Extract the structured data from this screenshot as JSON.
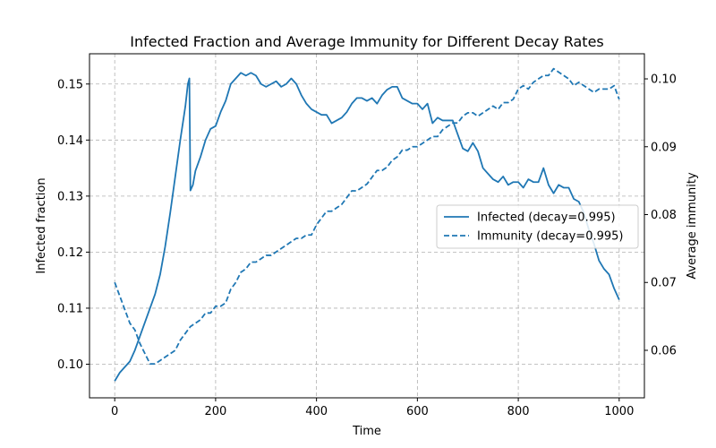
{
  "chart_data": {
    "type": "line",
    "title": "Infected Fraction and Average Immunity for Different Decay Rates",
    "xlabel": "Time",
    "ylabel_left": "Infected fraction",
    "ylabel_right": "Average immunity",
    "xlim": [
      -50,
      1050
    ],
    "ylim_left": [
      0.094,
      0.1554
    ],
    "ylim_right": [
      0.053,
      0.1037
    ],
    "x_ticks": [
      0,
      200,
      400,
      600,
      800,
      1000
    ],
    "x_tick_labels": [
      "0",
      "200",
      "400",
      "600",
      "800",
      "1000"
    ],
    "y_ticks_left": [
      0.1,
      0.11,
      0.12,
      0.13,
      0.14,
      0.15
    ],
    "y_tick_labels_left": [
      "0.10",
      "0.11",
      "0.12",
      "0.13",
      "0.14",
      "0.15"
    ],
    "y_ticks_right": [
      0.06,
      0.07,
      0.08,
      0.09,
      0.1
    ],
    "y_tick_labels_right": [
      "0.06",
      "0.07",
      "0.08",
      "0.09",
      "0.10"
    ],
    "grid": true,
    "grid_style": "dashed",
    "legend_position": "center-right",
    "series": [
      {
        "name": "Infected (decay=0.995)",
        "axis": "left",
        "style": "solid",
        "color": "#1f77b4",
        "x": [
          0,
          10,
          20,
          30,
          40,
          50,
          60,
          70,
          80,
          90,
          100,
          110,
          120,
          130,
          140,
          145,
          148,
          150,
          155,
          160,
          170,
          180,
          190,
          200,
          210,
          220,
          230,
          240,
          250,
          260,
          270,
          280,
          290,
          300,
          310,
          320,
          330,
          340,
          350,
          360,
          370,
          380,
          390,
          400,
          410,
          420,
          430,
          440,
          450,
          460,
          470,
          480,
          490,
          500,
          510,
          520,
          530,
          540,
          550,
          560,
          570,
          580,
          590,
          600,
          610,
          620,
          630,
          640,
          650,
          660,
          670,
          680,
          690,
          700,
          710,
          720,
          730,
          740,
          750,
          760,
          770,
          780,
          790,
          800,
          810,
          820,
          830,
          840,
          850,
          860,
          870,
          880,
          890,
          900,
          910,
          920,
          930,
          940,
          950,
          960,
          970,
          980,
          990,
          1000
        ],
        "values": [
          0.097,
          0.0985,
          0.0995,
          0.1005,
          0.1025,
          0.105,
          0.1075,
          0.11,
          0.1125,
          0.116,
          0.121,
          0.127,
          0.1335,
          0.14,
          0.146,
          0.15,
          0.151,
          0.131,
          0.132,
          0.1345,
          0.137,
          0.14,
          0.142,
          0.1425,
          0.145,
          0.147,
          0.15,
          0.151,
          0.152,
          0.1515,
          0.152,
          0.1515,
          0.15,
          0.1495,
          0.15,
          0.1505,
          0.1495,
          0.15,
          0.151,
          0.15,
          0.148,
          0.1465,
          0.1455,
          0.145,
          0.1445,
          0.1445,
          0.143,
          0.1435,
          0.144,
          0.145,
          0.1465,
          0.1475,
          0.1475,
          0.147,
          0.1475,
          0.1465,
          0.148,
          0.149,
          0.1495,
          0.1495,
          0.1475,
          0.147,
          0.1465,
          0.1465,
          0.1455,
          0.1465,
          0.143,
          0.144,
          0.1435,
          0.1435,
          0.1435,
          0.141,
          0.1385,
          0.138,
          0.1395,
          0.138,
          0.135,
          0.134,
          0.133,
          0.1325,
          0.1335,
          0.132,
          0.1325,
          0.1325,
          0.1315,
          0.133,
          0.1325,
          0.1325,
          0.135,
          0.132,
          0.1305,
          0.132,
          0.1315,
          0.1315,
          0.1295,
          0.129,
          0.127,
          0.124,
          0.1215,
          0.1185,
          0.117,
          0.116,
          0.1135,
          0.1115
        ]
      },
      {
        "name": "Immunity (decay=0.995)",
        "axis": "right",
        "style": "dashed",
        "color": "#1f77b4",
        "x": [
          0,
          10,
          20,
          30,
          40,
          50,
          60,
          70,
          80,
          90,
          100,
          110,
          120,
          130,
          140,
          150,
          160,
          170,
          180,
          190,
          200,
          210,
          220,
          230,
          240,
          250,
          260,
          270,
          280,
          290,
          300,
          310,
          320,
          330,
          340,
          350,
          360,
          370,
          380,
          390,
          400,
          410,
          420,
          430,
          440,
          450,
          460,
          470,
          480,
          490,
          500,
          510,
          520,
          530,
          540,
          550,
          560,
          570,
          580,
          590,
          600,
          610,
          620,
          630,
          640,
          650,
          660,
          670,
          680,
          690,
          700,
          710,
          720,
          730,
          740,
          750,
          760,
          770,
          780,
          790,
          800,
          810,
          820,
          830,
          840,
          850,
          860,
          870,
          880,
          890,
          900,
          910,
          920,
          930,
          940,
          950,
          960,
          970,
          980,
          990,
          1000
        ],
        "values": [
          0.07,
          0.068,
          0.066,
          0.064,
          0.063,
          0.061,
          0.0595,
          0.058,
          0.058,
          0.0585,
          0.059,
          0.0595,
          0.06,
          0.0615,
          0.0625,
          0.0635,
          0.064,
          0.0645,
          0.0655,
          0.0655,
          0.0665,
          0.0665,
          0.067,
          0.069,
          0.07,
          0.0715,
          0.072,
          0.073,
          0.073,
          0.0735,
          0.074,
          0.074,
          0.0745,
          0.075,
          0.0755,
          0.076,
          0.0765,
          0.0765,
          0.077,
          0.077,
          0.0785,
          0.0795,
          0.0805,
          0.0805,
          0.081,
          0.0815,
          0.0825,
          0.0835,
          0.0835,
          0.084,
          0.0845,
          0.0855,
          0.0865,
          0.0865,
          0.087,
          0.088,
          0.0885,
          0.0895,
          0.0895,
          0.09,
          0.09,
          0.0905,
          0.091,
          0.0915,
          0.0915,
          0.0925,
          0.093,
          0.0935,
          0.0935,
          0.0945,
          0.095,
          0.095,
          0.0945,
          0.095,
          0.0955,
          0.096,
          0.0955,
          0.0965,
          0.0965,
          0.097,
          0.0985,
          0.099,
          0.0985,
          0.0995,
          0.1,
          0.1005,
          0.1005,
          0.1015,
          0.101,
          0.1005,
          0.1,
          0.099,
          0.0995,
          0.099,
          0.0985,
          0.098,
          0.0985,
          0.0985,
          0.0985,
          0.099,
          0.097
        ]
      }
    ]
  }
}
